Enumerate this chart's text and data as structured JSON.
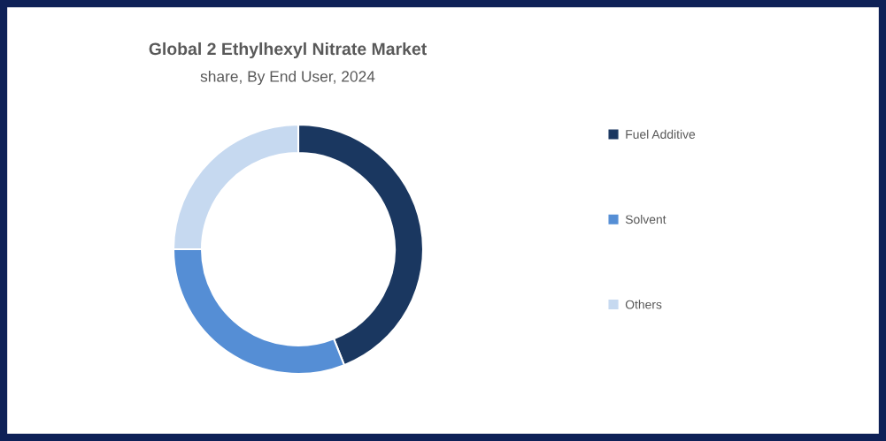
{
  "chart_data": {
    "type": "donut",
    "title": "Global 2 Ethylhexyl Nitrate Market",
    "subtitle": "share, By End User, 2024",
    "categories": [
      "Fuel Additive",
      "Solvent",
      "Others"
    ],
    "values": [
      44,
      31,
      25
    ],
    "colors": [
      "#1a3760",
      "#558ed5",
      "#c6d9f0"
    ],
    "legend": "right"
  }
}
